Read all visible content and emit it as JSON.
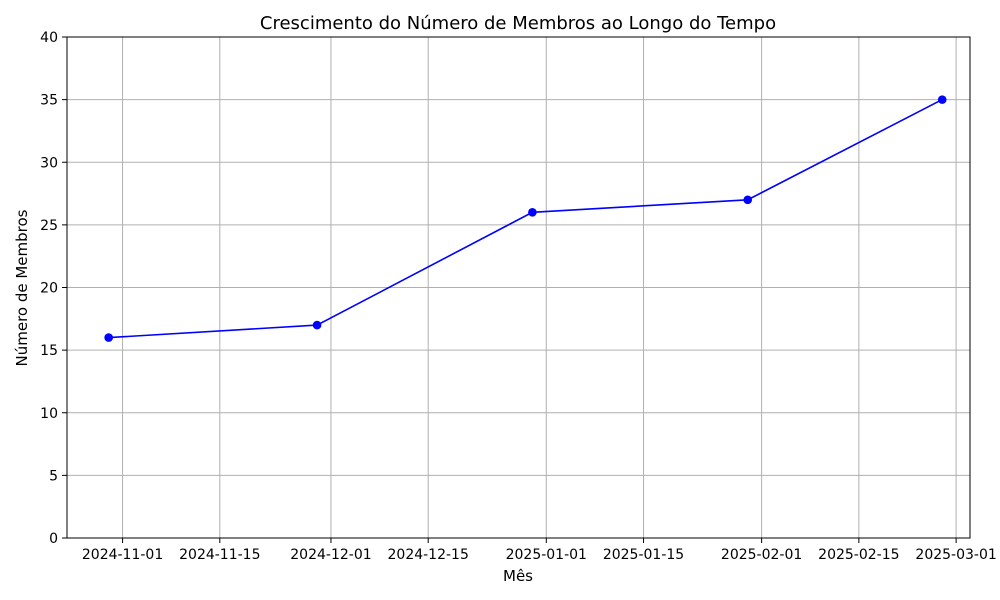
{
  "chart_data": {
    "type": "line",
    "title": "Crescimento do Número de Membros ao Longo do Tempo",
    "xlabel": "Mês",
    "ylabel": "Número de Membros",
    "x": [
      "2024-10-30",
      "2024-11-29",
      "2024-12-30",
      "2025-01-30",
      "2025-02-27"
    ],
    "series": [
      {
        "values": [
          16,
          17,
          26,
          27,
          35
        ]
      }
    ],
    "xlim": [
      "2024-10-24",
      "2025-03-03"
    ],
    "ylim": [
      0,
      40
    ],
    "x_ticks": [
      "2024-11-01",
      "2024-11-15",
      "2024-12-01",
      "2024-12-15",
      "2025-01-01",
      "2025-01-15",
      "2025-02-01",
      "2025-02-15",
      "2025-03-01"
    ],
    "y_ticks": [
      0,
      5,
      10,
      15,
      20,
      25,
      30,
      35,
      40
    ],
    "grid": true,
    "line_color": "#0000ff",
    "marker": "circle"
  }
}
